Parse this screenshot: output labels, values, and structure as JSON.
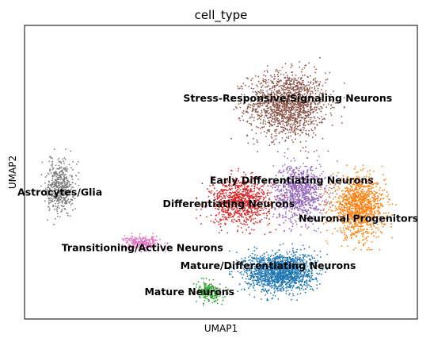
{
  "chart_data": {
    "type": "scatter",
    "title": "cell_type",
    "xlabel": "UMAP1",
    "ylabel": "UMAP2",
    "xlim": [
      0,
      100
    ],
    "ylim": [
      0,
      100
    ],
    "grid": false,
    "legend": "on data",
    "show_ticks": false,
    "series": [
      {
        "name": "Stress-Responsive/Signaling Neurons",
        "color": "#8c564b",
        "center": [
          67,
          73
        ],
        "spread": [
          9,
          10
        ],
        "count": 1500
      },
      {
        "name": "Early Differentiating Neurons",
        "color": "#9467bd",
        "center": [
          70,
          43
        ],
        "spread": [
          6,
          9
        ],
        "count": 900
      },
      {
        "name": "Neuronal Progenitors",
        "color": "#ff7f0e",
        "center": [
          85,
          38
        ],
        "spread": [
          6,
          9
        ],
        "count": 1200
      },
      {
        "name": "Differentiating Neurons",
        "color": "#d62728",
        "center": [
          55,
          40
        ],
        "spread": [
          7,
          7
        ],
        "count": 900
      },
      {
        "name": "Mature/Differentiating Neurons",
        "color": "#1f77b4",
        "center": [
          65,
          16
        ],
        "spread": [
          8,
          6
        ],
        "count": 1600
      },
      {
        "name": "Mature Neurons",
        "color": "#2ca02c",
        "center": [
          47,
          9
        ],
        "spread": [
          3,
          3
        ],
        "count": 220
      },
      {
        "name": "Transitioning/Active Neurons",
        "color": "#e377c2",
        "center": [
          30,
          26
        ],
        "spread": [
          4,
          2
        ],
        "count": 260
      },
      {
        "name": "Astrocytes/Glia",
        "color": "#7f7f7f",
        "center": [
          9,
          45
        ],
        "spread": [
          3,
          8
        ],
        "count": 520
      }
    ],
    "labels": [
      {
        "text": "Stress-Responsive/Signaling Neurons",
        "x": 67,
        "y": 75
      },
      {
        "text": "Early Differentiating Neurons",
        "x": 68,
        "y": 47
      },
      {
        "text": "Differentiating Neurons",
        "x": 52,
        "y": 39
      },
      {
        "text": "Neuronal Progenitors",
        "x": 85,
        "y": 34
      },
      {
        "text": "Astrocytes/Glia",
        "x": 9,
        "y": 43
      },
      {
        "text": "Transitioning/Active Neurons",
        "x": 30,
        "y": 24
      },
      {
        "text": "Mature/Differentiating Neurons",
        "x": 62,
        "y": 18
      },
      {
        "text": "Mature Neurons",
        "x": 42,
        "y": 9
      }
    ]
  }
}
